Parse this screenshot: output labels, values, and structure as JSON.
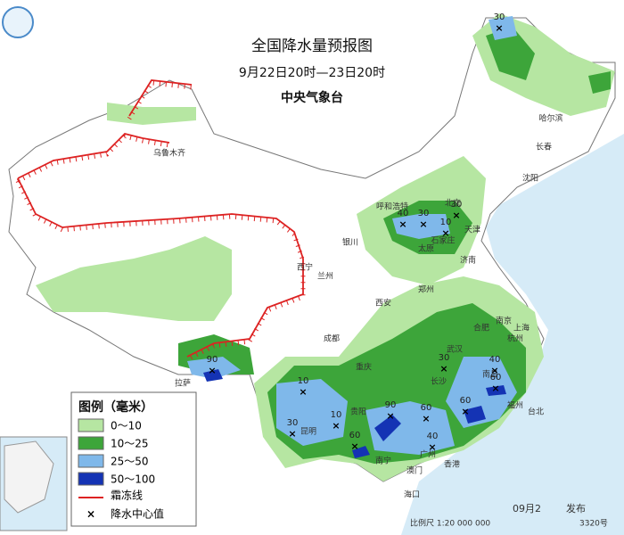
{
  "header": {
    "title": "全国降水量预报图",
    "subtitle": "9月22日20时—23日20时",
    "issuer": "中央气象台"
  },
  "legend": {
    "title": "图例（毫米）",
    "items": [
      {
        "label": "0～10",
        "color": "#b6e6a2"
      },
      {
        "label": "10～25",
        "color": "#3da53a"
      },
      {
        "label": "25～50",
        "color": "#7fb8ea"
      },
      {
        "label": "50～100",
        "color": "#1433b4"
      }
    ],
    "frost_line": "霜冻线",
    "center": "降水中心值"
  },
  "cities": [
    "乌鲁木齐",
    "哈尔滨",
    "长春",
    "沈阳",
    "呼和浩特",
    "北京",
    "天津",
    "石家庄",
    "太原",
    "济南",
    "银川",
    "西宁",
    "兰州",
    "郑州",
    "西安",
    "合肥",
    "南京",
    "上海",
    "武汉",
    "杭州",
    "成都",
    "重庆",
    "长沙",
    "南昌",
    "福州",
    "拉萨",
    "贵阳",
    "昆明",
    "南宁",
    "广州",
    "香港",
    "澳门",
    "海口",
    "台北"
  ],
  "centers": [
    30,
    40,
    30,
    30,
    10,
    30,
    40,
    60,
    60,
    90,
    10,
    30,
    10,
    90,
    60,
    60,
    40
  ],
  "footer": {
    "date": "09月2",
    "issued": "发布",
    "scale": "比例尺 1:20 000 000",
    "approval": "3320号"
  }
}
